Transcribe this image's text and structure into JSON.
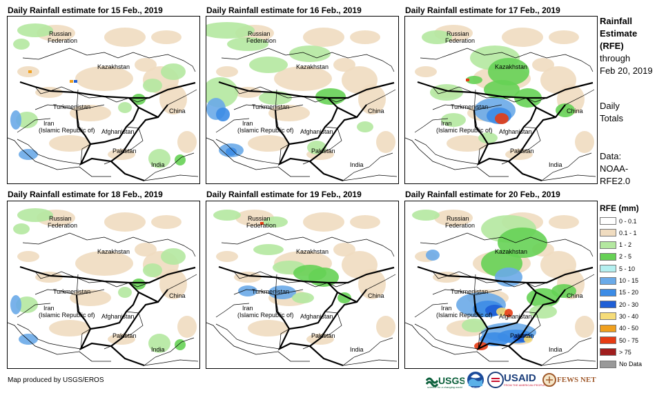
{
  "panels": [
    {
      "title": "Daily Rainfall estimate for 15 Feb., 2019",
      "rain_level": 1
    },
    {
      "title": "Daily Rainfall estimate for 16 Feb., 2019",
      "rain_level": 2
    },
    {
      "title": "Daily Rainfall estimate for 17 Feb., 2019",
      "rain_level": 3
    },
    {
      "title": "Daily Rainfall estimate for 18 Feb., 2019",
      "rain_level": 1
    },
    {
      "title": "Daily Rainfall estimate for 19 Feb., 2019",
      "rain_level": 1
    },
    {
      "title": "Daily Rainfall estimate for 20 Feb., 2019",
      "rain_level": 4
    }
  ],
  "map_labels": {
    "russia_1": "Russian",
    "russia_2": "Federation",
    "kazakhstan": "Kazakhstan",
    "turkmenistan": "Turkmenistan",
    "iran_1": "Iran",
    "iran_2": "(Islamic Republic of)",
    "afghanistan": "Afghanistan",
    "pakistan": "Pakistan",
    "china": "China",
    "india": "India"
  },
  "side": {
    "title_1": "Rainfall",
    "title_2": "Estimate",
    "title_3": "(RFE)",
    "through": "through",
    "date": "Feb 20, 2019",
    "daily_1": "Daily",
    "daily_2": "Totals",
    "data_1": "Data:",
    "data_2": "NOAA-",
    "data_3": "RFE2.0"
  },
  "legend": {
    "title": "RFE (mm)",
    "items": [
      {
        "label": "0 - 0.1",
        "color": "#ffffff"
      },
      {
        "label": "0.1 - 1",
        "color": "#f0dcc0"
      },
      {
        "label": "1 - 2",
        "color": "#b4e8a0"
      },
      {
        "label": "2 - 5",
        "color": "#66d155"
      },
      {
        "label": "5 - 10",
        "color": "#b4f0f0"
      },
      {
        "label": "10 - 15",
        "color": "#6aaae8"
      },
      {
        "label": "15 - 20",
        "color": "#3c8ce6"
      },
      {
        "label": "20 - 30",
        "color": "#1f5fd6"
      },
      {
        "label": "30 - 40",
        "color": "#f5dc78"
      },
      {
        "label": "40 - 50",
        "color": "#f0a01e"
      },
      {
        "label": "50 - 75",
        "color": "#e63c14"
      },
      {
        "label": "> 75",
        "color": "#a01e1e"
      },
      {
        "label": "No Data",
        "color": "#999999"
      }
    ]
  },
  "footer": {
    "credit": "Map produced by USGS/EROS",
    "usgs": "USGS",
    "usgs_tag": "science for a changing world",
    "noaa": "NOAA",
    "usaid": "USAID",
    "usaid_tag": "FROM THE AMERICAN PEOPLE",
    "fews": "FEWS NET"
  }
}
